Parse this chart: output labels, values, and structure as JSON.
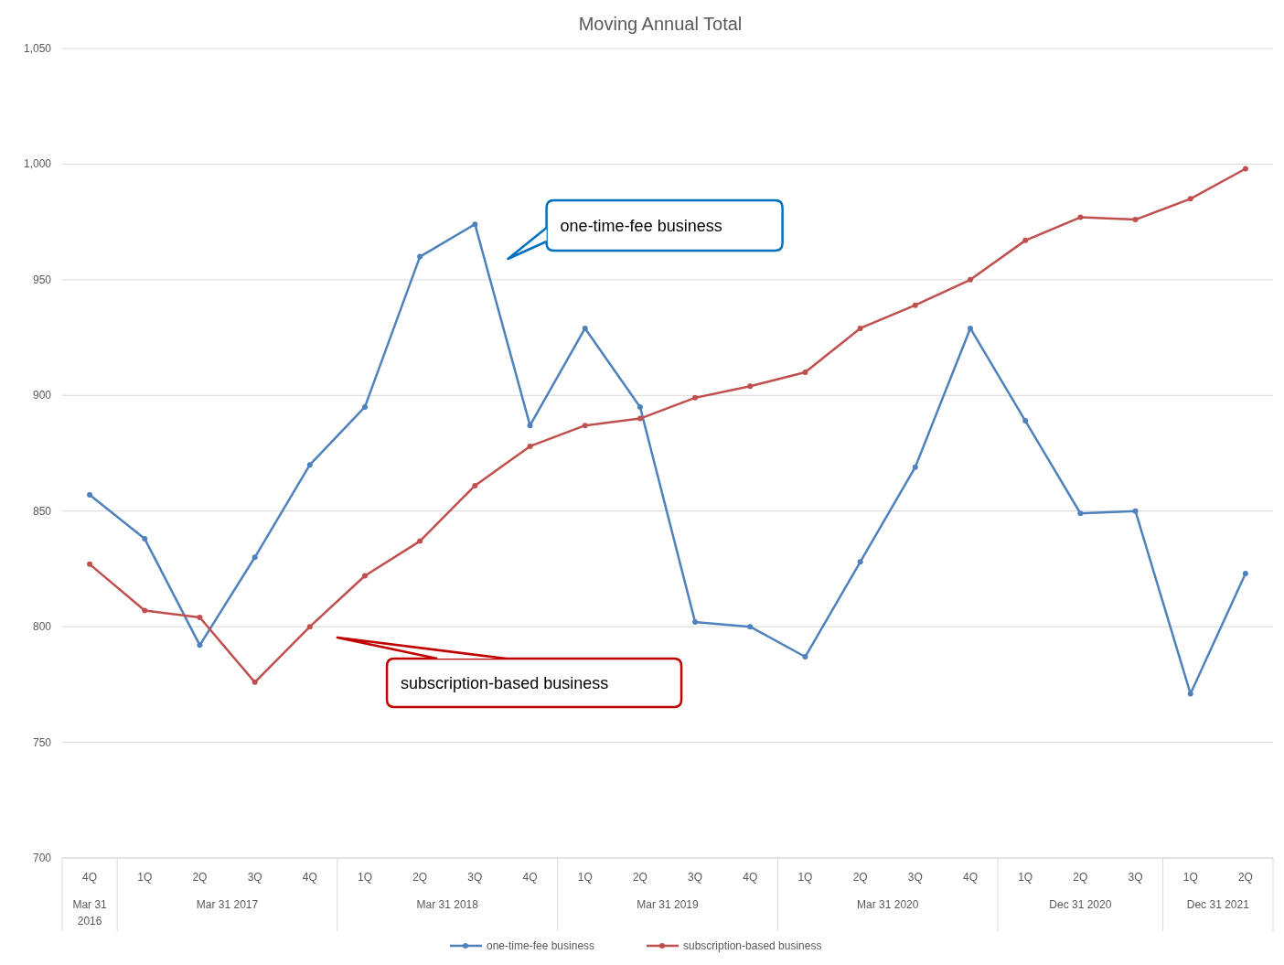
{
  "chart_data": {
    "type": "line",
    "title": "Moving Annual Total",
    "categories": [
      "4Q",
      "1Q",
      "2Q",
      "3Q",
      "4Q",
      "1Q",
      "2Q",
      "3Q",
      "4Q",
      "1Q",
      "2Q",
      "3Q",
      "4Q",
      "1Q",
      "2Q",
      "3Q",
      "4Q",
      "1Q",
      "2Q",
      "3Q",
      "1Q",
      "2Q"
    ],
    "series": [
      {
        "name": "one-time-fee business",
        "color": "#4f81bd",
        "values": [
          857,
          838,
          792,
          830,
          870,
          895,
          960,
          974,
          887,
          929,
          895,
          802,
          800,
          787,
          828,
          869,
          929,
          889,
          849,
          850,
          771,
          823
        ]
      },
      {
        "name": "subscription-based business",
        "color": "#c0504d",
        "values": [
          827,
          807,
          804,
          776,
          800,
          822,
          837,
          861,
          878,
          887,
          890,
          899,
          904,
          910,
          929,
          939,
          950,
          967,
          977,
          976,
          985,
          998
        ]
      }
    ],
    "ylim": [
      700,
      1050
    ],
    "yticks": [
      700,
      750,
      800,
      850,
      900,
      950,
      {
        "value": 1000,
        "label": "1,000"
      },
      {
        "value": 1050,
        "label": "1,050"
      }
    ],
    "grid": "y",
    "legend": "bottom",
    "marker": "circle",
    "line_style": "solid",
    "annotations": [
      "one-time-fee business",
      "subscription-based business",
      "Mar 31 2016",
      "Mar 31 2017",
      "Mar 31 2018",
      "Mar 31 2019",
      "Mar 31 2020",
      "Dec 31 2020",
      "Dec 31 2021"
    ]
  }
}
